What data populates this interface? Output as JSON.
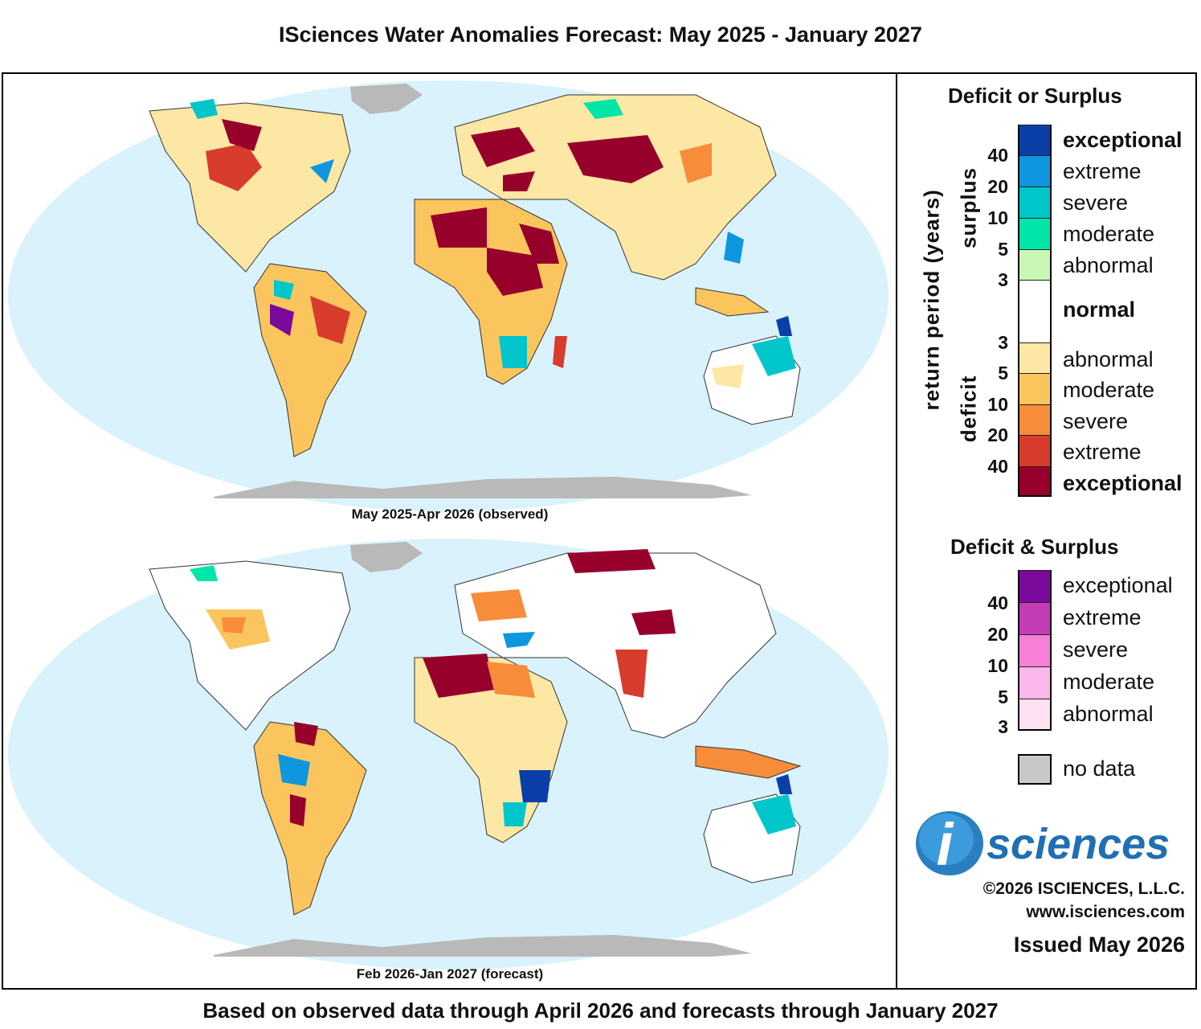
{
  "title": "ISciences Water Anomalies Forecast: May 2025 - January 2027",
  "footer": "Based on observed data through April 2026 and forecasts through January 2027",
  "maps": {
    "top_caption": "May 2025-Apr 2026 (observed)",
    "bottom_caption": "Feb 2026-Jan 2027 (forecast)"
  },
  "legend": {
    "title_main": "Deficit or Surplus",
    "axis_label": "return period (years)",
    "surplus_label": "surplus",
    "deficit_label": "deficit",
    "surplus": [
      {
        "label": "exceptional",
        "color": "#0a3fa8"
      },
      {
        "label": "extreme",
        "color": "#0e96de"
      },
      {
        "label": "severe",
        "color": "#00c6cc"
      },
      {
        "label": "moderate",
        "color": "#00e6a8"
      },
      {
        "label": "abnormal",
        "color": "#c9f7b4"
      }
    ],
    "normal": {
      "label": "normal",
      "color": "#ffffff"
    },
    "deficit": [
      {
        "label": "abnormal",
        "color": "#fde7a4"
      },
      {
        "label": "moderate",
        "color": "#fbc55e"
      },
      {
        "label": "severe",
        "color": "#f78c3a"
      },
      {
        "label": "extreme",
        "color": "#d73c2c"
      },
      {
        "label": "exceptional",
        "color": "#98002c"
      }
    ],
    "surplus_numbers": [
      "40",
      "20",
      "10",
      "5",
      "3"
    ],
    "deficit_numbers": [
      "3",
      "5",
      "10",
      "20",
      "40"
    ],
    "title_both": "Deficit & Surplus",
    "both": [
      {
        "label": "exceptional",
        "color": "#7a0a9c"
      },
      {
        "label": "extreme",
        "color": "#c43bb8"
      },
      {
        "label": "severe",
        "color": "#f77fd6"
      },
      {
        "label": "moderate",
        "color": "#fbb6ea"
      },
      {
        "label": "abnormal",
        "color": "#fde0f1"
      }
    ],
    "both_numbers": [
      "40",
      "20",
      "10",
      "5",
      "3"
    ],
    "no_data": {
      "label": "no data",
      "color": "#c8c8c8"
    }
  },
  "branding": {
    "logo_letter": "i",
    "logo_text": "sciences",
    "copyright": "©2026 ISCIENCES, L.L.C.",
    "website": "www.isciences.com",
    "issued": "Issued May 2026"
  }
}
